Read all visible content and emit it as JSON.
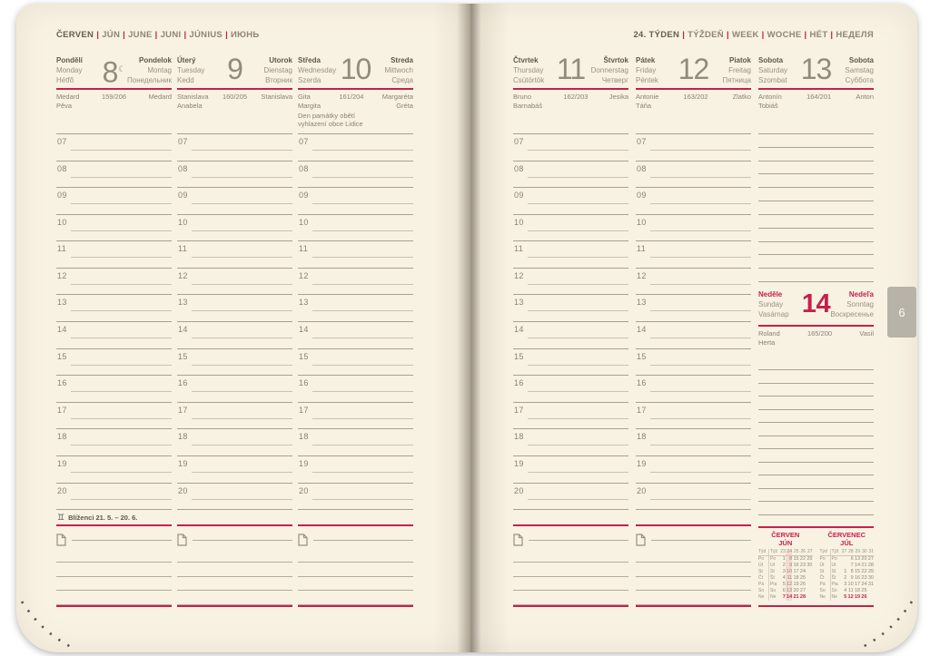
{
  "header_left": {
    "first": "ČERVEN",
    "rest": [
      "JÚN",
      "JUNE",
      "JUNI",
      "JÚNIUS",
      "ИЮНЬ"
    ]
  },
  "header_right": {
    "first": "24. TÝDEN",
    "rest": [
      "TÝŽDEŇ",
      "WEEK",
      "WOCHE",
      "HÉT",
      "НЕДЕЛЯ"
    ]
  },
  "tab": "6",
  "hours": [
    "07",
    "08",
    "09",
    "10",
    "11",
    "12",
    "13",
    "14",
    "15",
    "16",
    "17",
    "18",
    "19",
    "20"
  ],
  "zodiac": {
    "symbol": "♊",
    "label": "Blíženci 21. 5. – 20. 6."
  },
  "icons": {
    "moon_phase": "☾",
    "note": "note-icon"
  },
  "days": [
    {
      "id": "monday",
      "num": "8",
      "moon": true,
      "l1": "Pondělí",
      "l2": "Monday",
      "l3": "Hétfő",
      "r1": "Pondelok",
      "r2": "Montag",
      "r3": "Понедельник",
      "names_l": [
        "Medard",
        "Pěva"
      ],
      "doy": "159/206",
      "names_r": [
        "Medard"
      ]
    },
    {
      "id": "tuesday",
      "num": "9",
      "moon": false,
      "l1": "Úterý",
      "l2": "Tuesday",
      "l3": "Kedd",
      "r1": "Utorok",
      "r2": "Dienstag",
      "r3": "Вторник",
      "names_l": [
        "Stanislava",
        "Anabela"
      ],
      "doy": "160/205",
      "names_r": [
        "Stanislava"
      ]
    },
    {
      "id": "wednesday",
      "num": "10",
      "moon": false,
      "l1": "Středa",
      "l2": "Wednesday",
      "l3": "Szerda",
      "r1": "Streda",
      "r2": "Mittwoch",
      "r3": "Среда",
      "names_l": [
        "Gita",
        "Margita"
      ],
      "doy": "161/204",
      "names_r": [
        "Margaréta",
        "Gréta"
      ],
      "note": [
        "Den památky obětí",
        "vyhlazení obce Lidice"
      ]
    },
    {
      "id": "thursday",
      "num": "11",
      "moon": false,
      "l1": "Čtvrtek",
      "l2": "Thursday",
      "l3": "Csütörtök",
      "r1": "Štvrtok",
      "r2": "Donnerstag",
      "r3": "Четверг",
      "names_l": [
        "Bruno",
        "Barnabáš"
      ],
      "doy": "162/203",
      "names_r": [
        "Jesika"
      ]
    },
    {
      "id": "friday",
      "num": "12",
      "moon": false,
      "l1": "Pátek",
      "l2": "Friday",
      "l3": "Péntek",
      "r1": "Piatok",
      "r2": "Freitag",
      "r3": "Пятница",
      "names_l": [
        "Antonie",
        "Táňa"
      ],
      "doy": "163/202",
      "names_r": [
        "Zlatko"
      ]
    }
  ],
  "saturday": {
    "id": "saturday",
    "num": "13",
    "moon": false,
    "l1": "Sobota",
    "l2": "Saturday",
    "l3": "Szombat",
    "r1": "Sobota",
    "r2": "Samstag",
    "r3": "Суббота",
    "names_l": [
      "Antonín",
      "Tobiáš"
    ],
    "doy": "164/201",
    "names_r": [
      "Anton"
    ]
  },
  "sunday": {
    "id": "sunday",
    "num": "14",
    "moon": false,
    "l1": "Neděle",
    "l2": "Sunday",
    "l3": "Vasárnap",
    "r1": "Nedeľa",
    "r2": "Sonntag",
    "r3": "Воскресенье",
    "names_l": [
      "Roland",
      "Herta"
    ],
    "doy": "165/200",
    "names_r": [
      "Vasil"
    ]
  },
  "cal_corner": [
    "Týd",
    "Týž"
  ],
  "cal_day_labels": [
    [
      "Po",
      "Po"
    ],
    [
      "Út",
      "Ut"
    ],
    [
      "St",
      "St"
    ],
    [
      "Čt",
      "Št"
    ],
    [
      "Pá",
      "Pia"
    ],
    [
      "So",
      "So"
    ],
    [
      "Ne",
      "Ne"
    ]
  ],
  "calendars": [
    {
      "title1": "ČERVEN",
      "title2": "JÚN",
      "weeks": [
        "23",
        "24",
        "25",
        "26",
        "27"
      ],
      "hl_col": 1,
      "rows": [
        [
          "1",
          "8",
          "15",
          "22",
          "29"
        ],
        [
          "2",
          "9",
          "16",
          "23",
          "30"
        ],
        [
          "3",
          "10",
          "17",
          "24",
          ""
        ],
        [
          "4",
          "11",
          "18",
          "25",
          ""
        ],
        [
          "5",
          "12",
          "19",
          "26",
          ""
        ],
        [
          "6",
          "13",
          "20",
          "27",
          ""
        ],
        [
          "7",
          "14",
          "21",
          "28",
          ""
        ]
      ]
    },
    {
      "title1": "ČERVENEC",
      "title2": "JÚL",
      "weeks": [
        "27",
        "28",
        "29",
        "30",
        "31"
      ],
      "hl_col": -1,
      "rows": [
        [
          "",
          "6",
          "13",
          "20",
          "27"
        ],
        [
          "",
          "7",
          "14",
          "21",
          "28"
        ],
        [
          "1",
          "8",
          "15",
          "22",
          "29"
        ],
        [
          "2",
          "9",
          "16",
          "23",
          "30"
        ],
        [
          "3",
          "10",
          "17",
          "24",
          "31"
        ],
        [
          "4",
          "11",
          "18",
          "25",
          ""
        ],
        [
          "5",
          "12",
          "19",
          "26",
          ""
        ]
      ]
    }
  ],
  "colors": {
    "accent": "#c5204e",
    "paper": "#f8f2e3",
    "tab_gray": "#b7b3a8",
    "week_highlight": "#f4dbd1"
  }
}
